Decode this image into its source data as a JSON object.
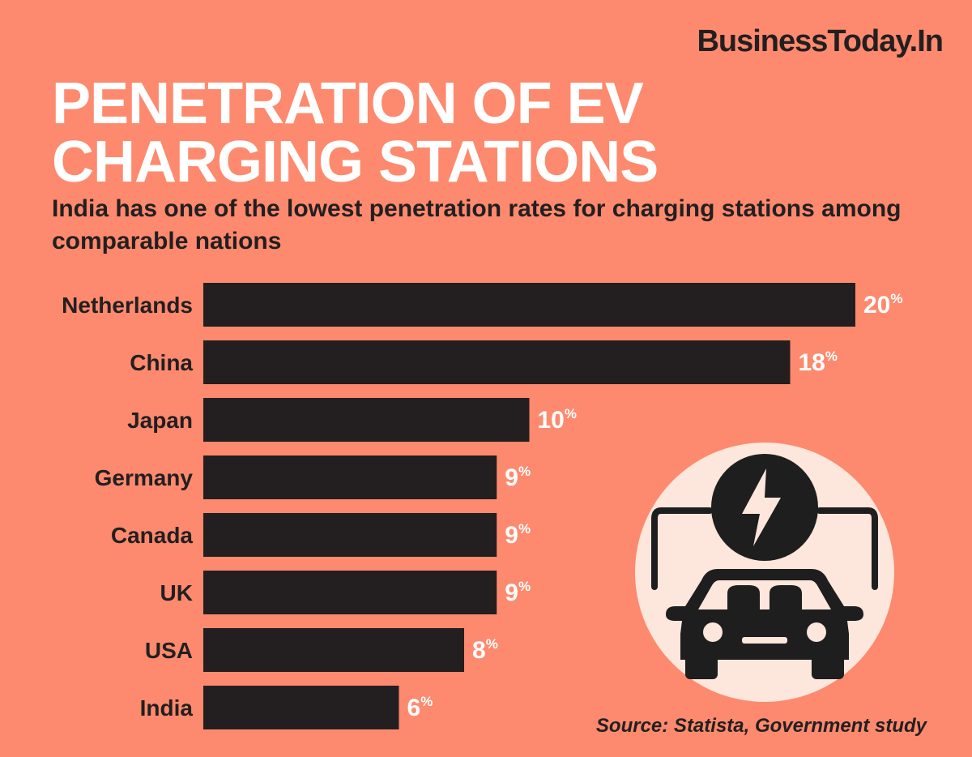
{
  "brand": "BusinessToday.In",
  "title_lines": [
    "PENETRATION OF EV",
    "CHARGING STATIONS"
  ],
  "subtitle": "India has one of the lowest penetration rates for charging stations among comparable nations",
  "source": "Source: Statista, Government study",
  "value_suffix": "%",
  "colors": {
    "background": "#fd8a6e",
    "bar": "#231f20",
    "title": "#ffffff",
    "icon_circle": "#fde6dc"
  },
  "icon": "ev-charging-car-icon",
  "chart_data": {
    "type": "bar",
    "orientation": "horizontal",
    "categories": [
      "Netherlands",
      "China",
      "Japan",
      "Germany",
      "Canada",
      "UK",
      "USA",
      "India"
    ],
    "values": [
      20,
      18,
      10,
      9,
      9,
      9,
      8,
      6
    ],
    "unit": "%",
    "title": "PENETRATION OF EV CHARGING STATIONS",
    "xlabel": "",
    "ylabel": "",
    "xlim": [
      0,
      20
    ],
    "grid": false
  }
}
